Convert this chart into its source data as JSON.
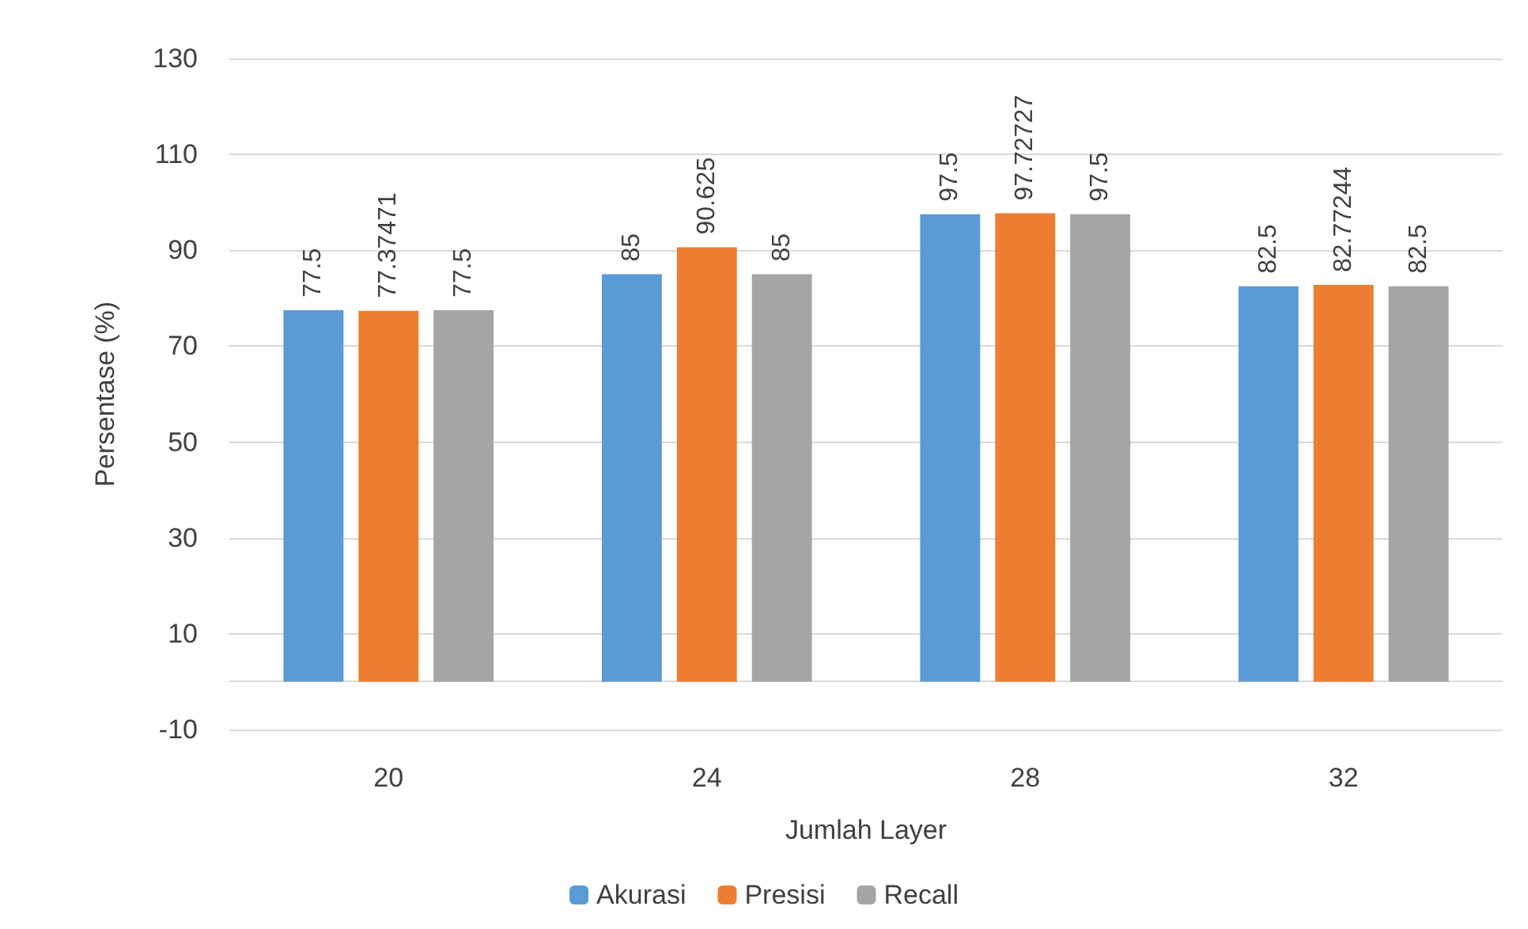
{
  "chart_data": {
    "type": "bar",
    "xlabel": "Jumlah Layer",
    "ylabel": "Persentase (%)",
    "categories": [
      "20",
      "24",
      "28",
      "32"
    ],
    "series": [
      {
        "name": "Akurasi",
        "color": "#5b9bd5",
        "values": [
          77.5,
          85,
          97.5,
          82.5
        ]
      },
      {
        "name": "Presisi",
        "color": "#ed7d31",
        "values": [
          77.37471,
          90.625,
          97.72727,
          82.77244
        ]
      },
      {
        "name": "Recall",
        "color": "#a5a5a5",
        "values": [
          77.5,
          85,
          97.5,
          82.5
        ]
      }
    ],
    "ylim": [
      -10,
      130
    ],
    "yticks": [
      -10,
      10,
      30,
      50,
      70,
      90,
      110,
      130
    ],
    "grid": "y",
    "legend": "bottom",
    "data_labels": true
  }
}
